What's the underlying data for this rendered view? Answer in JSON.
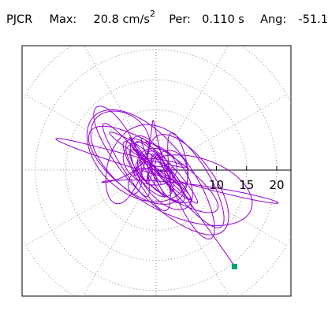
{
  "header": {
    "station": "PJCR",
    "max_label": "Max:",
    "max_value": "20.8 cm/s",
    "max_exponent": "2",
    "per_label": "Per:",
    "per_value": "0.110 s",
    "ang_label": "Ang:",
    "ang_value": "-51.1"
  },
  "chart_data": {
    "type": "polar-particle-motion",
    "radial_ticks": [
      "10",
      "15",
      "20"
    ],
    "radial_tick_values": [
      10,
      15,
      20
    ],
    "ring_step": 5,
    "ring_count": 5,
    "spoke_step_deg": 30,
    "angle_deg": -51.1,
    "max_amplitude": 20.8,
    "endpoint": {
      "x": 13,
      "y": -16
    },
    "trace_color": "#9400d3",
    "marker_color": "#00a070",
    "grid_color": "#888888"
  }
}
